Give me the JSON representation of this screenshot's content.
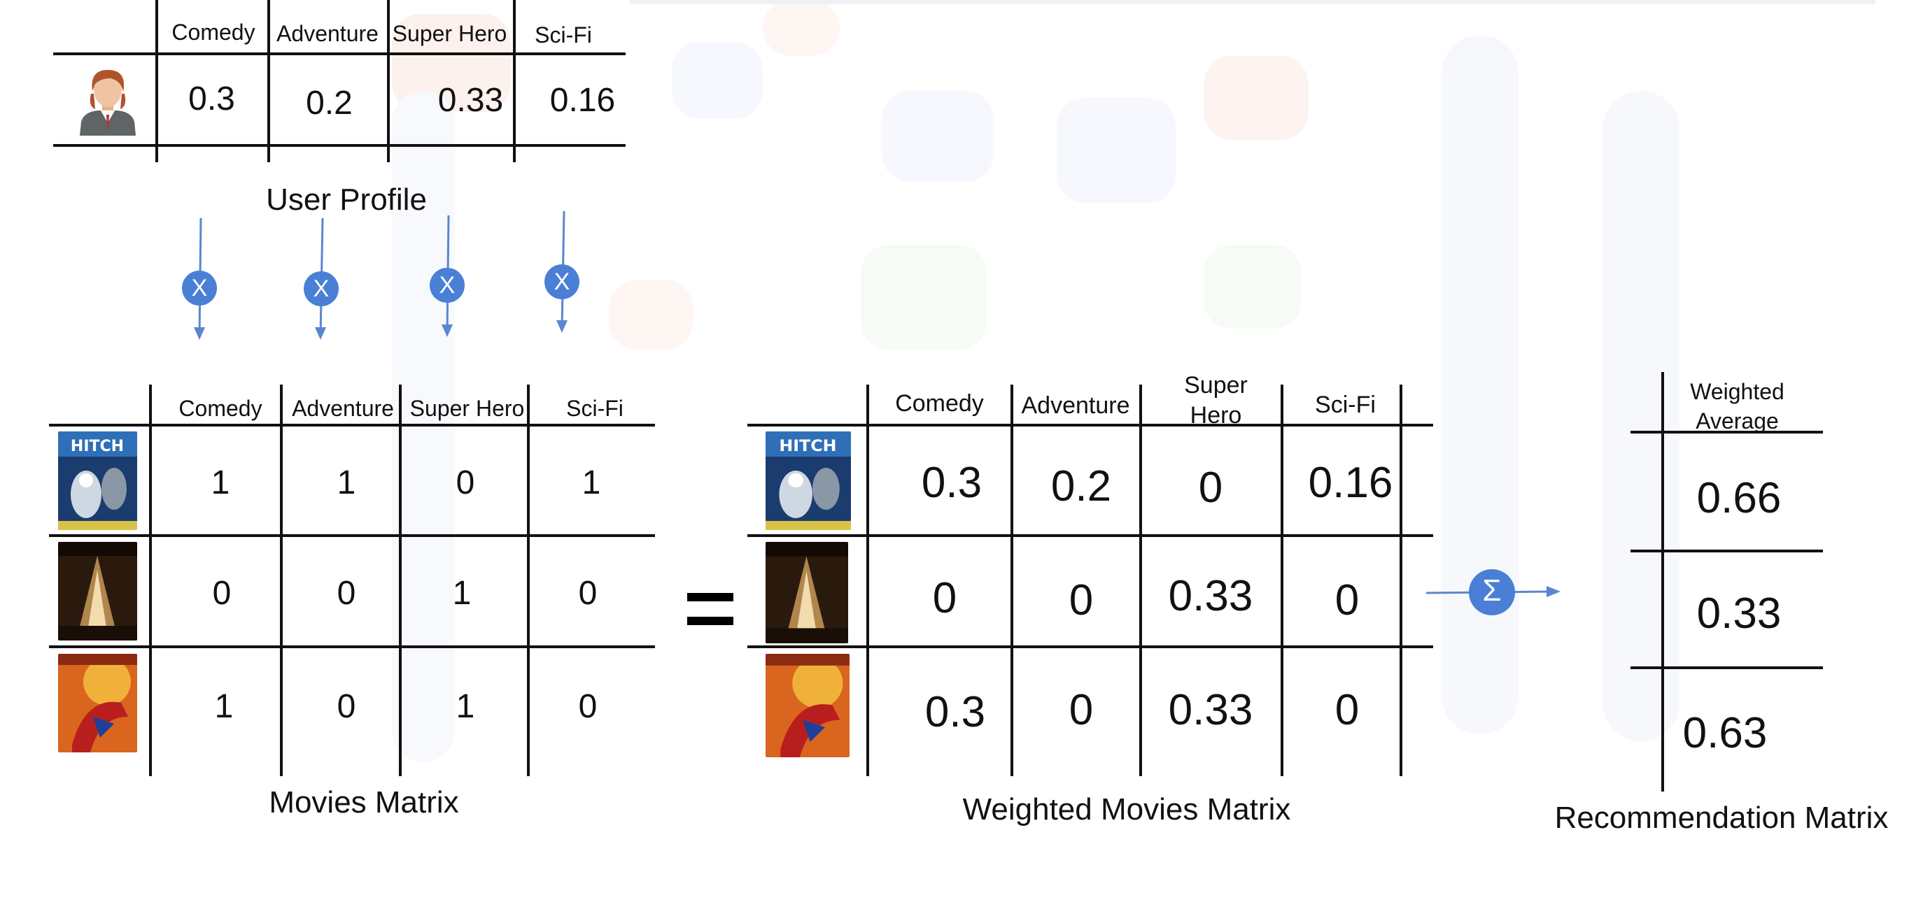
{
  "genres": [
    "Comedy",
    "Adventure",
    "Super Hero",
    "Sci-Fi"
  ],
  "weighted_genres": [
    "Comedy",
    "Adventure",
    "Super\nHero",
    "Sci-Fi"
  ],
  "user_profile": {
    "caption": "User Profile",
    "weights": [
      "0.3",
      "0.2",
      "0.33",
      "0.16"
    ]
  },
  "operators": {
    "multiply": "X",
    "sum": "Σ"
  },
  "movies_matrix": {
    "caption": "Movies Matrix",
    "rows": [
      [
        "1",
        "1",
        "0",
        "1"
      ],
      [
        "0",
        "0",
        "1",
        "0"
      ],
      [
        "1",
        "0",
        "1",
        "0"
      ]
    ]
  },
  "weighted_matrix": {
    "caption": "Weighted Movies Matrix",
    "rows": [
      [
        "0.3",
        "0.2",
        "0",
        "0.16"
      ],
      [
        "0",
        "0",
        "0.33",
        "0"
      ],
      [
        "0.3",
        "0",
        "0.33",
        "0"
      ]
    ]
  },
  "recommendation_matrix": {
    "caption": "Recommendation Matrix",
    "header": "Weighted\nAverage",
    "values": [
      "0.66",
      "0.33",
      "0.63"
    ]
  },
  "colors": {
    "operator_blue": "#4a7fd6",
    "arrow_blue": "#5b86cf",
    "line": "#111111"
  },
  "icons": {
    "user": "user-avatar-icon",
    "posters": [
      "movie-poster-scifi-icon",
      "movie-poster-dark-icon",
      "movie-poster-superhero-icon"
    ]
  }
}
